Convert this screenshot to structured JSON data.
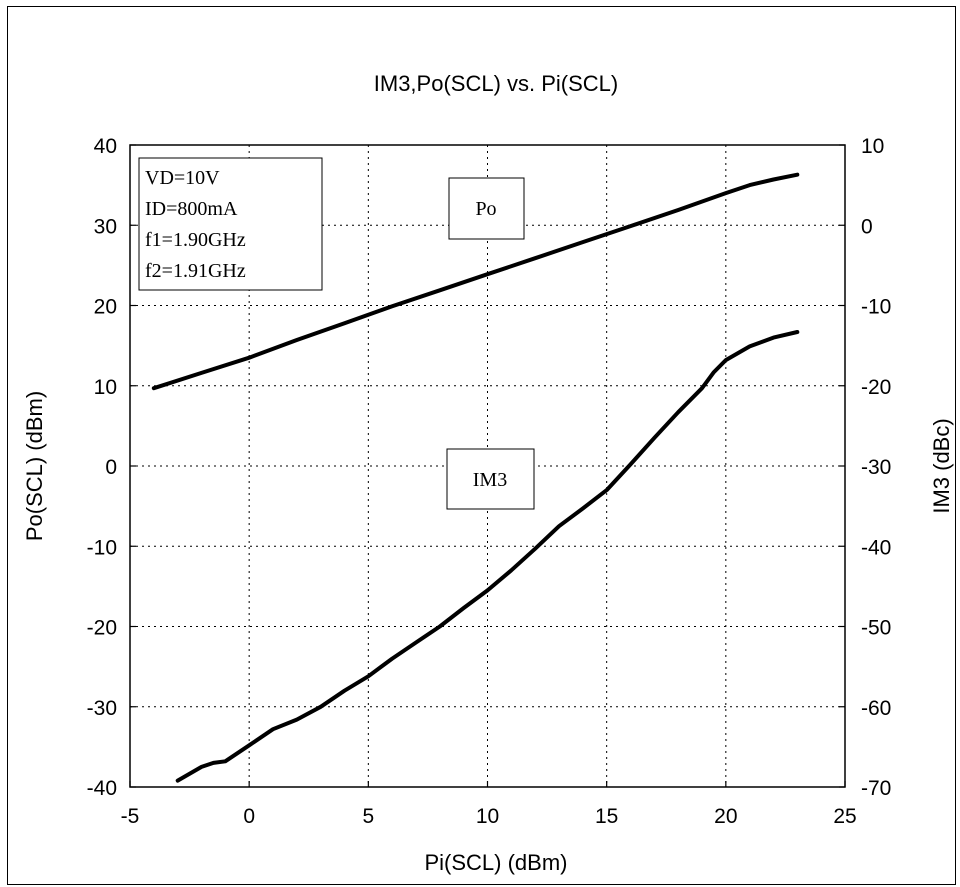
{
  "chart_data": {
    "type": "line",
    "title": "IM3,Po(SCL) vs. Pi(SCL)",
    "xlabel": "Pi(SCL) (dBm)",
    "ylabel": "Po(SCL) (dBm)",
    "y2label": "IM3 (dBc)",
    "xlim": [
      -5,
      25
    ],
    "ylim": [
      -40,
      40
    ],
    "y2lim": [
      -70,
      10
    ],
    "xticks": [
      "-5",
      "0",
      "5",
      "10",
      "15",
      "20",
      "25"
    ],
    "yticks": [
      "40",
      "30",
      "20",
      "10",
      "0",
      "-10",
      "-20",
      "-30",
      "-40"
    ],
    "y2ticks": [
      "10",
      "0",
      "-10",
      "-20",
      "-30",
      "-40",
      "-50",
      "-60",
      "-70"
    ],
    "grid": true,
    "conditions": [
      "VD=10V",
      "ID=800mA",
      "f1=1.90GHz",
      "f2=1.91GHz"
    ],
    "series": [
      {
        "name": "Po",
        "axis": "left",
        "color": "#000000",
        "x": [
          -4,
          -2,
          0,
          2,
          4,
          6,
          8,
          10,
          12,
          14,
          16,
          18,
          20,
          21,
          22,
          23
        ],
        "y": [
          9.7,
          11.6,
          13.5,
          15.7,
          17.8,
          19.9,
          21.9,
          23.9,
          25.9,
          27.9,
          29.9,
          31.9,
          34.0,
          35.0,
          35.7,
          36.3
        ]
      },
      {
        "name": "IM3",
        "axis": "right",
        "color": "#000000",
        "x": [
          -3,
          -2,
          -1.5,
          -1,
          0,
          1,
          2,
          3,
          4,
          5,
          6,
          7,
          8,
          9,
          10,
          11,
          12,
          13,
          14,
          15,
          16,
          17,
          18,
          19,
          19.5,
          20,
          21,
          22,
          23
        ],
        "y": [
          -69.2,
          -67.5,
          -67.0,
          -66.8,
          -64.8,
          -62.8,
          -61.6,
          -60.0,
          -58.0,
          -56.2,
          -54.0,
          -52.0,
          -50.0,
          -47.7,
          -45.5,
          -43.0,
          -40.3,
          -37.5,
          -35.3,
          -33.0,
          -29.8,
          -26.5,
          -23.3,
          -20.3,
          -18.3,
          -16.8,
          -15.1,
          -14.0,
          -13.3
        ]
      }
    ]
  }
}
